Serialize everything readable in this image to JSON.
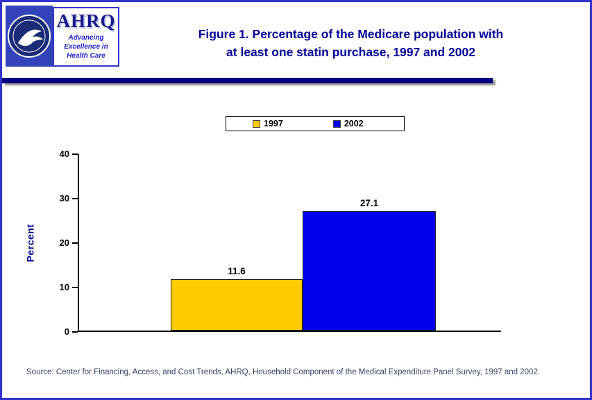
{
  "header": {
    "ahrq": {
      "acronym": "AHRQ",
      "tagline_line1": "Advancing",
      "tagline_line2": "Excellence in",
      "tagline_line3": "Health Care"
    },
    "title_line1": "Figure 1. Percentage of the Medicare population with",
    "title_line2": "at least one statin purchase, 1997 and 2002"
  },
  "chart_data": {
    "type": "bar",
    "title": "Figure 1. Percentage of the Medicare population with at least one statin purchase, 1997 and 2002",
    "categories": [
      "1997",
      "2002"
    ],
    "series": [
      {
        "name": "1997",
        "value": 11.6,
        "label": "11.6",
        "color": "#FFCC00"
      },
      {
        "name": "2002",
        "value": 27.1,
        "label": "27.1",
        "color": "#0000EE"
      }
    ],
    "xlabel": "",
    "ylabel": "Percent",
    "ylim": [
      0,
      40
    ],
    "yticks": [
      0,
      10,
      20,
      30,
      40
    ],
    "grid": false,
    "legend_position": "top-center"
  },
  "footer": {
    "source": "Source: Center for Financing, Access, and Cost Trends, AHRQ, Household Component of the Medical Expenditure Panel Survey, 1997 and 2002."
  },
  "colors": {
    "page_border": "#3232CC",
    "title_text": "#000099",
    "divider": "#000080",
    "ylabel_text": "#000099",
    "source_text": "#333F66",
    "bar_1997": "#FFCC00",
    "bar_2002": "#0000EE"
  }
}
